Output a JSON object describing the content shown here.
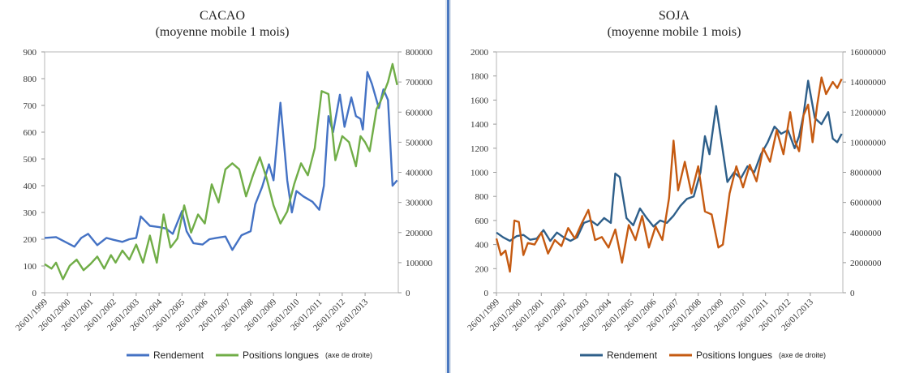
{
  "chart_data": [
    {
      "type": "line",
      "title": "CACAO",
      "subtitle": "(moyenne mobile 1 mois)",
      "ylim": [
        0,
        900
      ],
      "y_ticks": [
        "0",
        "100",
        "200",
        "300",
        "400",
        "500",
        "600",
        "700",
        "800",
        "900"
      ],
      "y2lim": [
        0,
        800000
      ],
      "y2_ticks": [
        "0",
        "100000",
        "200000",
        "300000",
        "400000",
        "500000",
        "600000",
        "700000",
        "800000"
      ],
      "x_ticks": [
        "26/01/1999",
        "26/01/2000",
        "26/01/2001",
        "26/01/2002",
        "26/01/2003",
        "26/01/2004",
        "26/01/2005",
        "26/01/2006",
        "26/01/2007",
        "26/01/2008",
        "26/01/2009",
        "26/01/2010",
        "26/01/2011",
        "26/01/2012",
        "26/01/2013"
      ],
      "grid": false,
      "legend_position": "bottom",
      "series": [
        {
          "name": "Rendement",
          "axis": "left",
          "color": "#4472c4",
          "x": [
            1999.0,
            1999.5,
            1999.9,
            2000.3,
            2000.6,
            2000.9,
            2001.3,
            2001.7,
            2002.0,
            2002.4,
            2002.7,
            2003.0,
            2003.2,
            2003.6,
            2004.0,
            2004.3,
            2004.6,
            2005.0,
            2005.2,
            2005.5,
            2005.9,
            2006.2,
            2006.5,
            2006.9,
            2007.2,
            2007.6,
            2008.0,
            2008.2,
            2008.5,
            2008.8,
            2009.0,
            2009.3,
            2009.6,
            2009.8,
            2010.0,
            2010.3,
            2010.7,
            2011.0,
            2011.2,
            2011.4,
            2011.6,
            2011.9,
            2012.1,
            2012.4,
            2012.6,
            2012.8,
            2012.9,
            2013.1,
            2013.3,
            2013.6,
            2013.8,
            2014.0,
            2014.2,
            2014.4
          ],
          "y": [
            205,
            208,
            190,
            172,
            205,
            220,
            178,
            205,
            198,
            190,
            200,
            205,
            285,
            250,
            245,
            240,
            220,
            305,
            230,
            185,
            180,
            200,
            205,
            210,
            160,
            215,
            230,
            330,
            395,
            480,
            420,
            710,
            420,
            300,
            380,
            360,
            340,
            310,
            400,
            660,
            600,
            740,
            620,
            730,
            660,
            650,
            610,
            825,
            780,
            690,
            760,
            720,
            400,
            420
          ]
        },
        {
          "name": "Positions longues",
          "axis": "right",
          "color": "#70ad47",
          "x": [
            1999.0,
            1999.3,
            1999.5,
            1999.8,
            2000.1,
            2000.4,
            2000.7,
            2001.0,
            2001.3,
            2001.6,
            2001.9,
            2002.1,
            2002.4,
            2002.7,
            2003.0,
            2003.3,
            2003.6,
            2003.9,
            2004.2,
            2004.5,
            2004.8,
            2005.1,
            2005.4,
            2005.7,
            2006.0,
            2006.3,
            2006.6,
            2006.9,
            2007.2,
            2007.5,
            2007.8,
            2008.1,
            2008.4,
            2008.7,
            2009.0,
            2009.3,
            2009.6,
            2009.9,
            2010.2,
            2010.5,
            2010.8,
            2011.1,
            2011.4,
            2011.7,
            2012.0,
            2012.3,
            2012.6,
            2012.8,
            2013.0,
            2013.2,
            2013.5,
            2013.7,
            2014.0,
            2014.2,
            2014.4
          ],
          "y": [
            95000,
            80000,
            100000,
            45000,
            90000,
            110000,
            75000,
            95000,
            120000,
            80000,
            125000,
            100000,
            140000,
            110000,
            160000,
            100000,
            190000,
            100000,
            260000,
            150000,
            180000,
            290000,
            200000,
            260000,
            230000,
            360000,
            300000,
            410000,
            430000,
            410000,
            320000,
            390000,
            450000,
            380000,
            290000,
            230000,
            270000,
            360000,
            430000,
            390000,
            480000,
            670000,
            660000,
            440000,
            520000,
            500000,
            420000,
            520000,
            500000,
            470000,
            610000,
            640000,
            700000,
            760000,
            690000
          ]
        }
      ]
    },
    {
      "type": "line",
      "title": "SOJA",
      "subtitle": "(moyenne mobile 1 mois)",
      "ylim": [
        0,
        2000
      ],
      "y_ticks": [
        "0",
        "200",
        "400",
        "600",
        "800",
        "1000",
        "1200",
        "1400",
        "1600",
        "1800",
        "2000"
      ],
      "y2lim": [
        0,
        16000000
      ],
      "y2_ticks": [
        "0",
        "2000000",
        "4000000",
        "6000000",
        "8000000",
        "10000000",
        "12000000",
        "14000000",
        "16000000"
      ],
      "x_ticks": [
        "26/01/1999",
        "26/01/2000",
        "26/01/2001",
        "26/01/2002",
        "26/01/2003",
        "26/01/2004",
        "26/01/2005",
        "26/01/2006",
        "26/01/2007",
        "26/01/2008",
        "26/01/2009",
        "26/01/2010",
        "26/01/2011",
        "26/01/2012",
        "26/01/2013"
      ],
      "grid": false,
      "legend_position": "bottom",
      "series": [
        {
          "name": "Rendement",
          "axis": "left",
          "color": "#2e5f8a",
          "x": [
            1999.0,
            1999.3,
            1999.6,
            1999.9,
            2000.2,
            2000.5,
            2000.8,
            2001.1,
            2001.4,
            2001.7,
            2002.0,
            2002.3,
            2002.6,
            2002.9,
            2003.2,
            2003.5,
            2003.8,
            2004.1,
            2004.3,
            2004.5,
            2004.8,
            2005.1,
            2005.4,
            2005.7,
            2006.0,
            2006.3,
            2006.6,
            2006.9,
            2007.2,
            2007.5,
            2007.8,
            2008.1,
            2008.3,
            2008.5,
            2008.8,
            2009.0,
            2009.3,
            2009.6,
            2009.9,
            2010.2,
            2010.5,
            2010.8,
            2011.1,
            2011.4,
            2011.7,
            2012.0,
            2012.3,
            2012.5,
            2012.7,
            2012.9,
            2013.2,
            2013.5,
            2013.8,
            2014.0,
            2014.2,
            2014.4
          ],
          "y": [
            500,
            460,
            430,
            470,
            480,
            440,
            450,
            520,
            430,
            500,
            460,
            430,
            460,
            580,
            600,
            560,
            620,
            580,
            990,
            960,
            620,
            560,
            700,
            620,
            550,
            600,
            580,
            640,
            720,
            780,
            800,
            1000,
            1300,
            1150,
            1550,
            1300,
            920,
            1000,
            950,
            1050,
            1000,
            1150,
            1250,
            1380,
            1320,
            1350,
            1200,
            1300,
            1480,
            1760,
            1450,
            1400,
            1500,
            1280,
            1250,
            1320
          ]
        },
        {
          "name": "Positions longues",
          "axis": "right",
          "color": "#c55a11",
          "x": [
            1999.0,
            1999.2,
            1999.4,
            1999.6,
            1999.8,
            2000.0,
            2000.2,
            2000.4,
            2000.7,
            2001.0,
            2001.3,
            2001.6,
            2001.9,
            2002.2,
            2002.5,
            2002.8,
            2003.1,
            2003.4,
            2003.7,
            2004.0,
            2004.3,
            2004.6,
            2004.9,
            2005.2,
            2005.5,
            2005.8,
            2006.1,
            2006.4,
            2006.7,
            2006.9,
            2007.1,
            2007.4,
            2007.7,
            2008.0,
            2008.3,
            2008.6,
            2008.9,
            2009.1,
            2009.4,
            2009.7,
            2010.0,
            2010.3,
            2010.6,
            2010.9,
            2011.2,
            2011.5,
            2011.8,
            2012.1,
            2012.3,
            2012.5,
            2012.7,
            2012.9,
            2013.1,
            2013.3,
            2013.5,
            2013.7,
            2014.0,
            2014.2,
            2014.4
          ],
          "y": [
            3600000,
            2500000,
            2800000,
            1400000,
            4800000,
            4700000,
            2500000,
            3300000,
            3200000,
            4000000,
            2600000,
            3500000,
            3100000,
            4300000,
            3600000,
            4600000,
            5500000,
            3500000,
            3700000,
            3000000,
            4200000,
            2000000,
            4500000,
            3500000,
            5100000,
            3000000,
            4400000,
            3500000,
            6300000,
            10100000,
            6800000,
            8700000,
            6600000,
            8400000,
            5400000,
            5200000,
            3000000,
            3200000,
            6600000,
            8400000,
            7000000,
            8500000,
            7400000,
            9600000,
            8700000,
            10800000,
            9200000,
            12000000,
            10100000,
            9400000,
            11800000,
            12500000,
            10000000,
            12400000,
            14300000,
            13200000,
            14000000,
            13600000,
            14200000
          ]
        }
      ]
    }
  ],
  "legend": {
    "rendement": "Rendement",
    "positions": "Positions longues",
    "note": "(axe de droite)"
  }
}
